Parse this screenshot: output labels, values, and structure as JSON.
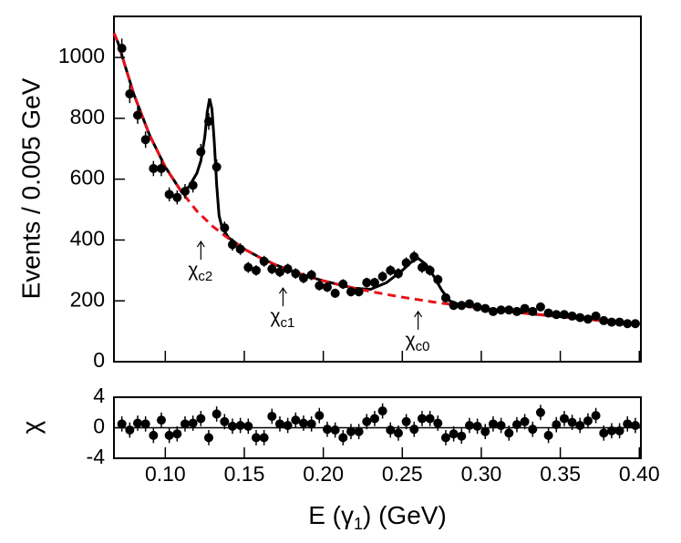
{
  "chart_data": [
    {
      "type": "scatter",
      "ylabel": "Events / 0.005 GeV",
      "xlim": [
        0.0675,
        0.401
      ],
      "ylim": [
        0,
        1135
      ],
      "yticks": [
        0,
        200,
        400,
        600,
        800,
        1000
      ],
      "color": "#000000",
      "x": [
        0.0725,
        0.0775,
        0.0825,
        0.0875,
        0.0925,
        0.0975,
        0.1025,
        0.1075,
        0.1125,
        0.1175,
        0.1225,
        0.1275,
        0.1325,
        0.1375,
        0.1425,
        0.1475,
        0.1525,
        0.1575,
        0.1625,
        0.1675,
        0.1725,
        0.1775,
        0.1825,
        0.1875,
        0.1925,
        0.1975,
        0.2025,
        0.2075,
        0.2125,
        0.2175,
        0.2225,
        0.2275,
        0.2325,
        0.2375,
        0.2425,
        0.2475,
        0.2525,
        0.2575,
        0.2625,
        0.2675,
        0.2725,
        0.2775,
        0.2825,
        0.2875,
        0.2925,
        0.2975,
        0.3025,
        0.3075,
        0.3125,
        0.3175,
        0.3225,
        0.3275,
        0.3325,
        0.3375,
        0.3425,
        0.3475,
        0.3525,
        0.3575,
        0.3625,
        0.3675,
        0.3725,
        0.3775,
        0.3825,
        0.3875,
        0.3925,
        0.3975
      ],
      "values": [
        1030,
        880,
        810,
        730,
        635,
        635,
        550,
        540,
        560,
        580,
        690,
        790,
        640,
        440,
        385,
        370,
        310,
        300,
        330,
        305,
        295,
        305,
        290,
        275,
        285,
        250,
        245,
        225,
        255,
        230,
        230,
        260,
        260,
        280,
        300,
        290,
        325,
        345,
        310,
        300,
        270,
        210,
        185,
        185,
        190,
        180,
        175,
        165,
        170,
        170,
        165,
        175,
        165,
        180,
        160,
        155,
        155,
        150,
        145,
        140,
        150,
        135,
        130,
        130,
        125,
        125
      ],
      "errors": [
        32,
        30,
        28,
        27,
        25,
        25,
        23,
        23,
        24,
        24,
        26,
        28,
        25,
        21,
        20,
        19,
        18,
        17,
        18,
        17,
        17,
        17,
        17,
        17,
        17,
        16,
        16,
        15,
        16,
        15,
        15,
        16,
        16,
        17,
        17,
        17,
        18,
        19,
        18,
        17,
        16,
        14,
        14,
        14,
        14,
        13,
        13,
        13,
        13,
        13,
        13,
        13,
        13,
        13,
        13,
        12,
        12,
        12,
        12,
        12,
        12,
        12,
        11,
        11,
        11,
        11
      ],
      "lines": [
        {
          "color": "#000000",
          "style": "solid",
          "x": [
            0.0675,
            0.07,
            0.08,
            0.09,
            0.1,
            0.11,
            0.115,
            0.12,
            0.1225,
            0.125,
            0.1265,
            0.128,
            0.1295,
            0.131,
            0.1325,
            0.134,
            0.136,
            0.14,
            0.15,
            0.16,
            0.17,
            0.18,
            0.19,
            0.2,
            0.21,
            0.22,
            0.23,
            0.24,
            0.25,
            0.255,
            0.26,
            0.265,
            0.27,
            0.275,
            0.28,
            0.285,
            0.29,
            0.3,
            0.31,
            0.32,
            0.33,
            0.34,
            0.35,
            0.36,
            0.37,
            0.38,
            0.39,
            0.4
          ],
          "values": [
            1080,
            1050,
            880,
            745,
            640,
            560,
            575,
            620,
            660,
            740,
            820,
            865,
            830,
            720,
            580,
            480,
            440,
            408,
            370,
            342,
            318,
            298,
            281,
            266,
            253,
            241,
            238,
            260,
            300,
            325,
            340,
            320,
            280,
            235,
            200,
            190,
            183,
            176,
            170,
            164,
            158,
            153,
            148,
            143,
            138,
            133,
            129,
            125
          ]
        },
        {
          "color": "#e8101a",
          "style": "dashed",
          "x": [
            0.0675,
            0.07,
            0.08,
            0.09,
            0.1,
            0.11,
            0.12,
            0.13,
            0.14,
            0.15,
            0.16,
            0.17,
            0.18,
            0.19,
            0.2,
            0.21,
            0.22,
            0.23,
            0.24,
            0.25,
            0.26,
            0.27,
            0.28,
            0.29,
            0.3,
            0.31,
            0.32,
            0.33,
            0.34,
            0.35,
            0.36,
            0.37,
            0.38,
            0.39,
            0.4
          ],
          "values": [
            1080,
            1050,
            880,
            745,
            640,
            560,
            495,
            445,
            405,
            370,
            342,
            318,
            298,
            281,
            266,
            253,
            241,
            231,
            221,
            212,
            204,
            196,
            189,
            182,
            176,
            170,
            164,
            158,
            153,
            148,
            143,
            138,
            133,
            129,
            125
          ]
        }
      ],
      "annotations": [
        {
          "text": "χ",
          "sub": "c2",
          "x": 0.1225,
          "y": 395
        },
        {
          "text": "χ",
          "sub": "c1",
          "x": 0.1745,
          "y": 242
        },
        {
          "text": "χ",
          "sub": "c0",
          "x": 0.26,
          "y": 165
        }
      ]
    },
    {
      "type": "scatter",
      "ylabel": "χ",
      "xlabel": {
        "text": "E (γ",
        "sub": "1",
        "tail": ") (GeV)"
      },
      "xlim": [
        0.0675,
        0.401
      ],
      "ylim": [
        -4,
        4
      ],
      "xticks": [
        {
          "value": 0.1,
          "label": "0.10"
        },
        0.15,
        {
          "value": 0.2,
          "label": "0.20"
        },
        0.25,
        {
          "value": 0.3,
          "label": "0.30"
        },
        0.35,
        {
          "value": 0.4,
          "label": "0.40"
        }
      ],
      "yticks": [
        4,
        0,
        -4
      ],
      "color": "#000000",
      "error": 1,
      "values": [
        0.5,
        -0.3,
        0.6,
        0.5,
        -1,
        1,
        -1,
        -0.8,
        0.5,
        0.6,
        1.2,
        -1.3,
        1.8,
        0.8,
        0.2,
        0.3,
        0.2,
        -1.3,
        -1.3,
        1.5,
        0.5,
        0.3,
        1,
        0.6,
        0.5,
        1.6,
        -0.2,
        -0.3,
        -1.3,
        -0.5,
        -0.5,
        0.8,
        1.2,
        2.2,
        -0.3,
        -0.7,
        0.8,
        -0.2,
        1.2,
        1.2,
        0.6,
        -1.3,
        -0.8,
        -1.1,
        0.3,
        0.2,
        -0.5,
        0.5,
        0.3,
        -0.7,
        0.4,
        0.8,
        -0.2,
        2,
        -1,
        0.4,
        1.2,
        0.7,
        0.3,
        0.9,
        1.6,
        -0.7,
        -0.4,
        -0.4,
        0.5,
        0.3
      ]
    }
  ]
}
